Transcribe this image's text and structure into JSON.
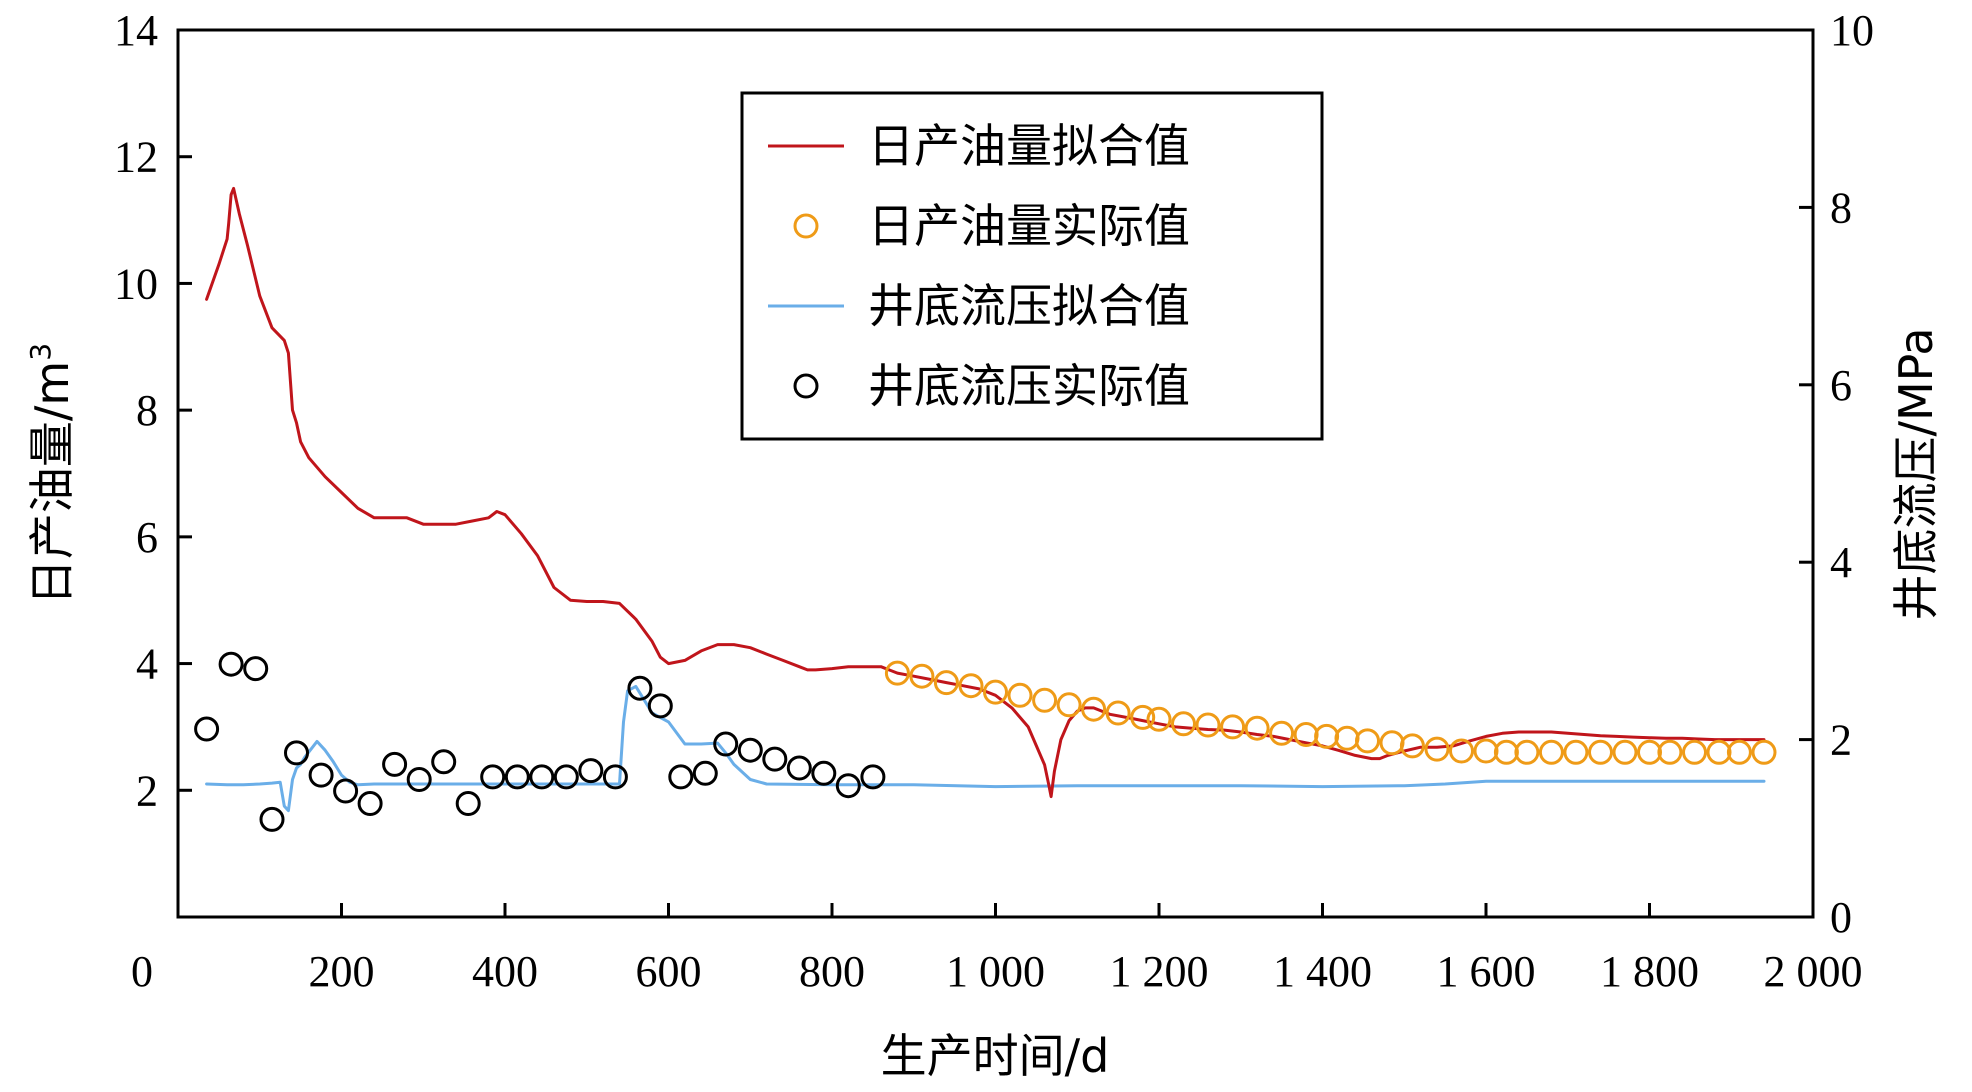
{
  "chart_data": {
    "type": "line",
    "xlabel": "生产时间/d",
    "ylabel_left": "日产油量/m",
    "ylabel_left_sup": "3",
    "ylabel_right": "井底流压/MPa",
    "xlim": [
      0,
      2000
    ],
    "ylim_left": [
      0,
      14
    ],
    "ylim_right": [
      0,
      10
    ],
    "x_ticks": [
      0,
      200,
      400,
      600,
      800,
      1000,
      1200,
      1400,
      1600,
      1800,
      2000
    ],
    "x_tick_labels": [
      "0",
      "200",
      "400",
      "600",
      "800",
      "1 000",
      "1 200",
      "1 400",
      "1 600",
      "1 800",
      "2 000"
    ],
    "y_left_ticks": [
      2,
      4,
      6,
      8,
      10,
      12,
      14
    ],
    "y_left_tick_labels": [
      "2",
      "4",
      "6",
      "8",
      "10",
      "12",
      "14"
    ],
    "y_right_ticks": [
      0,
      2,
      4,
      6,
      8,
      10
    ],
    "y_right_tick_labels": [
      "0",
      "2",
      "4",
      "6",
      "8",
      "10"
    ],
    "grid": false,
    "legend_position": "top-center",
    "series": [
      {
        "name": "日产油量拟合值",
        "kind": "line",
        "axis": "left",
        "color": "#c0151b",
        "x": [
          35,
          50,
          60,
          62,
          65,
          68,
          75,
          85,
          100,
          115,
          130,
          135,
          140,
          145,
          150,
          160,
          180,
          200,
          220,
          240,
          260,
          280,
          300,
          320,
          340,
          360,
          380,
          390,
          400,
          420,
          440,
          460,
          480,
          500,
          520,
          540,
          560,
          580,
          590,
          600,
          620,
          640,
          660,
          680,
          700,
          720,
          740,
          760,
          770,
          780,
          800,
          820,
          840,
          860,
          880,
          900,
          920,
          940,
          960,
          980,
          1000,
          1020,
          1040,
          1050,
          1060,
          1065,
          1068,
          1072,
          1080,
          1090,
          1100,
          1110,
          1120,
          1140,
          1160,
          1180,
          1200,
          1220,
          1240,
          1260,
          1280,
          1300,
          1320,
          1340,
          1360,
          1380,
          1400,
          1420,
          1440,
          1460,
          1470,
          1480,
          1500,
          1520,
          1540,
          1560,
          1580,
          1600,
          1620,
          1640,
          1660,
          1680,
          1700,
          1720,
          1740,
          1760,
          1780,
          1800,
          1820,
          1840,
          1860,
          1880,
          1900,
          1920,
          1940
        ],
        "y": [
          9.75,
          10.3,
          10.7,
          10.95,
          11.4,
          11.5,
          11.1,
          10.6,
          9.8,
          9.3,
          9.1,
          8.9,
          8.0,
          7.8,
          7.5,
          7.25,
          6.95,
          6.7,
          6.45,
          6.3,
          6.3,
          6.3,
          6.2,
          6.2,
          6.2,
          6.25,
          6.3,
          6.4,
          6.35,
          6.05,
          5.7,
          5.2,
          5.0,
          4.98,
          4.98,
          4.95,
          4.7,
          4.35,
          4.1,
          4.0,
          4.05,
          4.2,
          4.3,
          4.3,
          4.25,
          4.15,
          4.05,
          3.95,
          3.9,
          3.9,
          3.92,
          3.95,
          3.95,
          3.95,
          3.85,
          3.8,
          3.75,
          3.7,
          3.65,
          3.6,
          3.5,
          3.3,
          3.0,
          2.7,
          2.4,
          2.1,
          1.9,
          2.3,
          2.8,
          3.1,
          3.25,
          3.3,
          3.3,
          3.2,
          3.15,
          3.1,
          3.05,
          3.0,
          2.98,
          2.96,
          2.95,
          2.92,
          2.88,
          2.85,
          2.8,
          2.75,
          2.7,
          2.63,
          2.55,
          2.5,
          2.5,
          2.55,
          2.62,
          2.68,
          2.68,
          2.7,
          2.78,
          2.85,
          2.9,
          2.92,
          2.92,
          2.92,
          2.9,
          2.88,
          2.86,
          2.85,
          2.84,
          2.83,
          2.82,
          2.82,
          2.81,
          2.8,
          2.8,
          2.8,
          2.8
        ]
      },
      {
        "name": "日产油量实际值",
        "kind": "scatter",
        "axis": "left",
        "color": "#ef9b17",
        "x": [
          880,
          910,
          940,
          970,
          1000,
          1030,
          1060,
          1090,
          1120,
          1150,
          1180,
          1200,
          1230,
          1260,
          1290,
          1320,
          1350,
          1380,
          1405,
          1430,
          1455,
          1485,
          1510,
          1540,
          1570,
          1600,
          1625,
          1650,
          1680,
          1710,
          1740,
          1770,
          1800,
          1825,
          1855,
          1885,
          1910,
          1940
        ],
        "y": [
          3.85,
          3.8,
          3.7,
          3.65,
          3.55,
          3.5,
          3.42,
          3.35,
          3.28,
          3.22,
          3.15,
          3.12,
          3.05,
          3.03,
          3.0,
          2.98,
          2.9,
          2.88,
          2.85,
          2.82,
          2.78,
          2.75,
          2.7,
          2.65,
          2.62,
          2.62,
          2.6,
          2.6,
          2.6,
          2.6,
          2.6,
          2.6,
          2.6,
          2.6,
          2.6,
          2.6,
          2.6,
          2.6
        ]
      },
      {
        "name": "井底流压拟合值",
        "kind": "line",
        "axis": "right",
        "color": "#6aaee8",
        "x": [
          35,
          60,
          80,
          100,
          115,
          125,
          130,
          135,
          140,
          145,
          150,
          155,
          170,
          180,
          190,
          200,
          210,
          220,
          240,
          300,
          400,
          500,
          540,
          545,
          550,
          560,
          570,
          580,
          600,
          620,
          640,
          660,
          670,
          680,
          700,
          720,
          800,
          900,
          1000,
          1100,
          1200,
          1300,
          1400,
          1500,
          1550,
          1600,
          1700,
          1800,
          1900,
          1940
        ],
        "y": [
          1.5,
          1.49,
          1.49,
          1.5,
          1.51,
          1.52,
          1.25,
          1.2,
          1.55,
          1.68,
          1.72,
          1.8,
          1.98,
          1.88,
          1.75,
          1.6,
          1.52,
          1.49,
          1.5,
          1.5,
          1.5,
          1.5,
          1.5,
          2.2,
          2.55,
          2.6,
          2.45,
          2.3,
          2.2,
          1.95,
          1.95,
          1.96,
          1.85,
          1.72,
          1.55,
          1.5,
          1.49,
          1.49,
          1.47,
          1.48,
          1.48,
          1.48,
          1.47,
          1.48,
          1.5,
          1.53,
          1.53,
          1.53,
          1.53,
          1.53
        ]
      },
      {
        "name": "井底流压实际值",
        "kind": "scatter",
        "axis": "right",
        "color": "#000000",
        "x": [
          35,
          65,
          95,
          115,
          145,
          175,
          205,
          235,
          265,
          295,
          325,
          355,
          385,
          415,
          445,
          475,
          505,
          535,
          565,
          590,
          615,
          645,
          670,
          700,
          730,
          760,
          790,
          820,
          850
        ],
        "y": [
          2.12,
          2.85,
          2.8,
          1.1,
          1.85,
          1.6,
          1.42,
          1.28,
          1.72,
          1.55,
          1.75,
          1.28,
          1.58,
          1.58,
          1.58,
          1.58,
          1.65,
          1.58,
          2.58,
          2.38,
          1.58,
          1.62,
          1.95,
          1.88,
          1.78,
          1.68,
          1.62,
          1.48,
          1.58
        ]
      }
    ]
  }
}
